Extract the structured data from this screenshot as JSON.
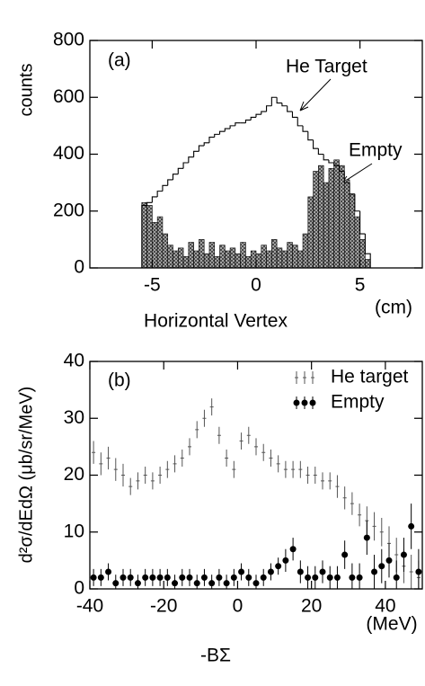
{
  "chart_data": [
    {
      "type": "histogram",
      "y_label": "counts",
      "x_label": "Horizontal Vertex",
      "x_unit": "(cm)",
      "annotations": [
        "(a)",
        "He Target",
        "Empty"
      ],
      "xlim": [
        -8,
        8
      ],
      "xticks": [
        -5,
        0,
        5
      ],
      "ylim": [
        0,
        800
      ],
      "yticks": [
        0,
        200,
        400,
        600,
        800
      ],
      "bins": [
        -5.5,
        -5.25,
        -5,
        -4.75,
        -4.5,
        -4.25,
        -4,
        -3.75,
        -3.5,
        -3.25,
        -3,
        -2.75,
        -2.5,
        -2.25,
        -2,
        -1.75,
        -1.5,
        -1.25,
        -1,
        -0.75,
        -0.5,
        -0.25,
        0,
        0.25,
        0.5,
        0.75,
        1,
        1.25,
        1.5,
        1.75,
        2,
        2.25,
        2.5,
        2.75,
        3,
        3.25,
        3.5,
        3.75,
        4,
        4.25,
        4.5,
        4.75,
        5,
        5.25,
        5.5
      ],
      "series": [
        {
          "name": "He Target",
          "color": "#000000",
          "style": "outline",
          "values": [
            220,
            230,
            250,
            270,
            290,
            310,
            330,
            350,
            370,
            390,
            410,
            430,
            440,
            460,
            470,
            480,
            490,
            500,
            510,
            510,
            520,
            530,
            540,
            550,
            570,
            600,
            580,
            570,
            550,
            530,
            500,
            480,
            450,
            420,
            400,
            380,
            370,
            360,
            340,
            300,
            260,
            200,
            120,
            50
          ]
        },
        {
          "name": "Empty",
          "color": "#000000",
          "style": "hatched",
          "values": [
            230,
            220,
            160,
            180,
            120,
            80,
            60,
            70,
            40,
            90,
            60,
            100,
            50,
            90,
            40,
            80,
            60,
            70,
            50,
            90,
            40,
            60,
            50,
            80,
            60,
            100,
            70,
            60,
            90,
            80,
            60,
            120,
            250,
            340,
            360,
            300,
            350,
            380,
            360,
            310,
            260,
            180,
            100,
            30
          ]
        }
      ]
    },
    {
      "type": "errorbar",
      "y_label": "d²σ/dEdΩ (μb/sr/MeV)",
      "x_label": "-BΣ",
      "x_unit": "(MeV)",
      "annotations": [
        "(b)"
      ],
      "legend": "top-right",
      "xlim": [
        -40,
        50
      ],
      "xticks": [
        -40,
        -20,
        0,
        20,
        40
      ],
      "ylim": [
        0,
        40
      ],
      "yticks": [
        0,
        10,
        20,
        30,
        40
      ],
      "x": [
        -39,
        -37,
        -35,
        -33,
        -31,
        -29,
        -27,
        -25,
        -23,
        -21,
        -19,
        -17,
        -15,
        -13,
        -11,
        -9,
        -7,
        -5,
        -3,
        -1,
        1,
        3,
        5,
        7,
        9,
        11,
        13,
        15,
        17,
        19,
        21,
        23,
        25,
        27,
        29,
        31,
        33,
        35,
        37,
        39,
        41,
        43,
        45,
        47,
        49
      ],
      "series": [
        {
          "name": "He target",
          "color": "#555555",
          "marker": "plus",
          "values": [
            24,
            22,
            23,
            21,
            20,
            18,
            19,
            20,
            19,
            20,
            21,
            22,
            23,
            25,
            28,
            30,
            32,
            27,
            23,
            21,
            26,
            27,
            25,
            24,
            23,
            22,
            21,
            21,
            21,
            20,
            20,
            19,
            19,
            18,
            16,
            15,
            13,
            12,
            11,
            10,
            8,
            6,
            4,
            3,
            2
          ],
          "errors": [
            2,
            2,
            2,
            2,
            2,
            1.5,
            1.5,
            1.5,
            1.5,
            1.5,
            1.5,
            1.5,
            1.5,
            1.5,
            1.5,
            1.5,
            1.5,
            1.5,
            1.5,
            1.5,
            1.5,
            1.5,
            1.5,
            1.5,
            1.5,
            1.5,
            1.5,
            1.5,
            1.5,
            1.5,
            1.5,
            1.5,
            1.5,
            2,
            2,
            2,
            2,
            2.5,
            2.5,
            2.5,
            3,
            3,
            3,
            3,
            3
          ]
        },
        {
          "name": "Empty",
          "color": "#000000",
          "marker": "circle",
          "values": [
            2,
            2,
            3,
            1,
            2,
            2,
            1,
            2,
            2,
            2,
            2,
            1,
            2,
            2,
            1,
            2,
            1,
            2,
            1,
            2,
            3,
            2,
            1,
            2,
            3,
            4,
            5,
            7,
            3,
            2,
            2,
            3,
            2,
            2,
            6,
            2,
            2,
            9,
            3,
            4,
            5,
            2,
            6,
            11,
            3
          ],
          "errors": [
            1.5,
            1.5,
            1.5,
            1.5,
            1.5,
            1.5,
            1.5,
            1.5,
            1.5,
            1.5,
            1.5,
            1.5,
            1.5,
            1.5,
            1.5,
            1.5,
            1.5,
            1.5,
            1.5,
            1.5,
            1.5,
            1.5,
            1.5,
            1.5,
            1.5,
            1.5,
            2,
            2,
            2,
            2,
            2,
            2,
            2,
            2,
            2.5,
            2.5,
            2.5,
            3,
            3,
            3,
            3,
            3,
            3,
            4,
            4
          ]
        }
      ]
    }
  ]
}
